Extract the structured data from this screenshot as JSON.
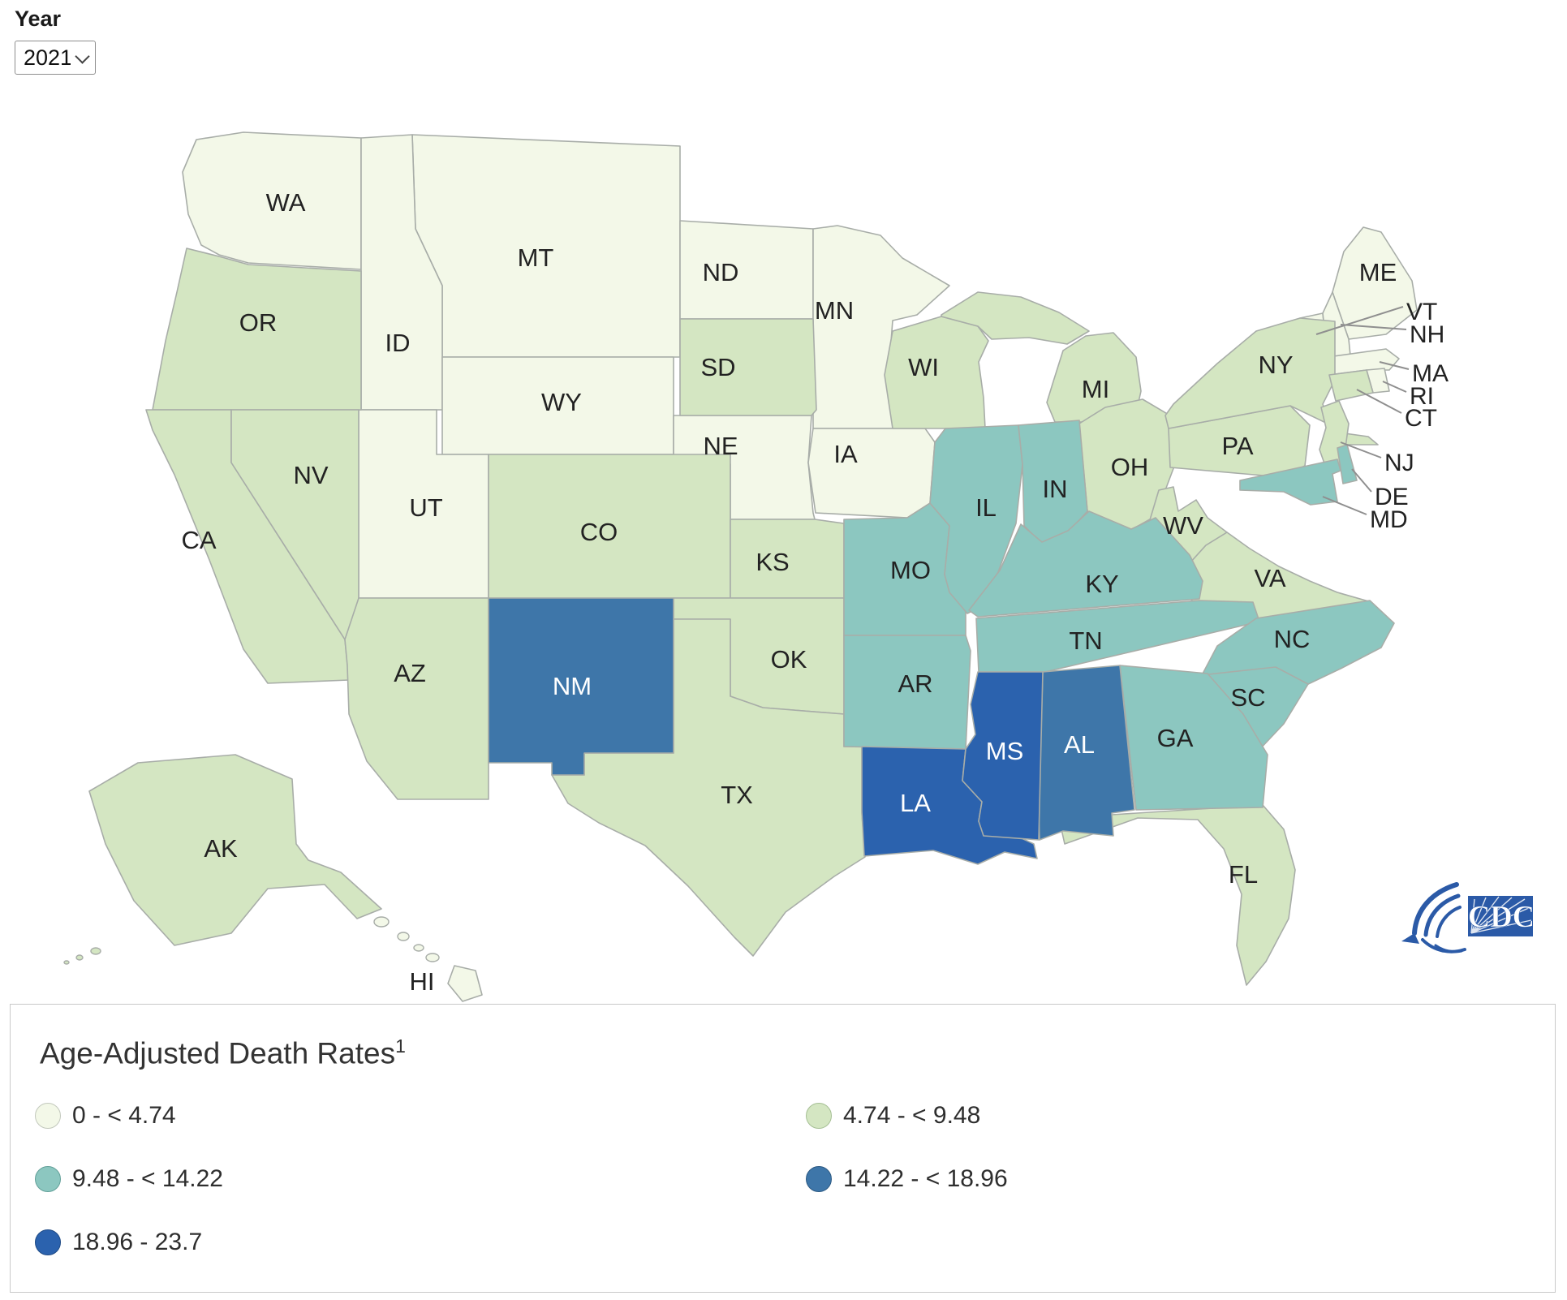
{
  "controls": {
    "year_label": "Year",
    "year_value": "2021"
  },
  "map": {
    "stroke_color": "#a8ada8",
    "categories": [
      {
        "label": "0 - < 4.74",
        "color": "#f3f8e8",
        "border": "#c2c8bc"
      },
      {
        "label": "4.74 - < 9.48",
        "color": "#d4e6c2",
        "border": "#a5bf94"
      },
      {
        "label": "9.48 - < 14.22",
        "color": "#8cc7c0",
        "border": "#62a099"
      },
      {
        "label": "14.22 - < 18.96",
        "color": "#3e76a9",
        "border": "#2d5a83"
      },
      {
        "label": "18.96 - 23.7",
        "color": "#2b62ae",
        "border": "#1e4a85"
      }
    ],
    "states": [
      {
        "abbr": "WA",
        "category": 0
      },
      {
        "abbr": "MT",
        "category": 0
      },
      {
        "abbr": "ID",
        "category": 0
      },
      {
        "abbr": "WY",
        "category": 0
      },
      {
        "abbr": "ND",
        "category": 0
      },
      {
        "abbr": "MN",
        "category": 0
      },
      {
        "abbr": "NE",
        "category": 0
      },
      {
        "abbr": "IA",
        "category": 0
      },
      {
        "abbr": "UT",
        "category": 0
      },
      {
        "abbr": "ME",
        "category": 0
      },
      {
        "abbr": "VT",
        "category": 0
      },
      {
        "abbr": "NH",
        "category": 0
      },
      {
        "abbr": "MA",
        "category": 0
      },
      {
        "abbr": "RI",
        "category": 0
      },
      {
        "abbr": "HI",
        "category": 0
      },
      {
        "abbr": "OR",
        "category": 1
      },
      {
        "abbr": "CA",
        "category": 1
      },
      {
        "abbr": "NV",
        "category": 1
      },
      {
        "abbr": "AZ",
        "category": 1
      },
      {
        "abbr": "CO",
        "category": 1
      },
      {
        "abbr": "SD",
        "category": 1
      },
      {
        "abbr": "KS",
        "category": 1
      },
      {
        "abbr": "OK",
        "category": 1
      },
      {
        "abbr": "TX",
        "category": 1
      },
      {
        "abbr": "WI",
        "category": 1
      },
      {
        "abbr": "MI",
        "category": 1
      },
      {
        "abbr": "OH",
        "category": 1
      },
      {
        "abbr": "PA",
        "category": 1
      },
      {
        "abbr": "NY",
        "category": 1
      },
      {
        "abbr": "NJ",
        "category": 1
      },
      {
        "abbr": "CT",
        "category": 1
      },
      {
        "abbr": "WV",
        "category": 1
      },
      {
        "abbr": "VA",
        "category": 1
      },
      {
        "abbr": "FL",
        "category": 1
      },
      {
        "abbr": "AK",
        "category": 1
      },
      {
        "abbr": "MO",
        "category": 2
      },
      {
        "abbr": "IL",
        "category": 2
      },
      {
        "abbr": "IN",
        "category": 2
      },
      {
        "abbr": "KY",
        "category": 2
      },
      {
        "abbr": "TN",
        "category": 2
      },
      {
        "abbr": "AR",
        "category": 2
      },
      {
        "abbr": "NC",
        "category": 2
      },
      {
        "abbr": "SC",
        "category": 2
      },
      {
        "abbr": "GA",
        "category": 2
      },
      {
        "abbr": "MD",
        "category": 2
      },
      {
        "abbr": "DE",
        "category": 2
      },
      {
        "abbr": "NM",
        "category": 3
      },
      {
        "abbr": "AL",
        "category": 3
      },
      {
        "abbr": "LA",
        "category": 4
      },
      {
        "abbr": "MS",
        "category": 4
      }
    ]
  },
  "legend": {
    "title": "Age-Adjusted Death Rates",
    "title_superscript": "1",
    "items": [
      {
        "label": "0 - < 4.74",
        "category": 0
      },
      {
        "label": "4.74 - < 9.48",
        "category": 1
      },
      {
        "label": "9.48 - < 14.22",
        "category": 2
      },
      {
        "label": "14.22 - < 18.96",
        "category": 3
      },
      {
        "label": "18.96 - 23.7",
        "category": 4
      }
    ]
  },
  "logo": {
    "cdc_text": "CDC"
  },
  "chart_data": {
    "type": "heatmap",
    "subtype": "us-state-choropleth",
    "title": "Age-Adjusted Death Rates",
    "title_superscript": "1",
    "year": "2021",
    "legend_position": "bottom",
    "value_range": [
      0,
      23.7
    ],
    "bins": [
      {
        "range": "0 - < 4.74",
        "color": "#f3f8e8",
        "states": [
          "WA",
          "MT",
          "ID",
          "WY",
          "ND",
          "MN",
          "NE",
          "IA",
          "UT",
          "ME",
          "VT",
          "NH",
          "MA",
          "RI",
          "HI"
        ]
      },
      {
        "range": "4.74 - < 9.48",
        "color": "#d4e6c2",
        "states": [
          "OR",
          "CA",
          "NV",
          "AZ",
          "CO",
          "SD",
          "KS",
          "OK",
          "TX",
          "WI",
          "MI",
          "OH",
          "PA",
          "NY",
          "NJ",
          "CT",
          "WV",
          "VA",
          "FL",
          "AK"
        ]
      },
      {
        "range": "9.48 - < 14.22",
        "color": "#8cc7c0",
        "states": [
          "MO",
          "IL",
          "IN",
          "KY",
          "TN",
          "AR",
          "NC",
          "SC",
          "GA",
          "MD",
          "DE"
        ]
      },
      {
        "range": "14.22 - < 18.96",
        "color": "#3e76a9",
        "states": [
          "NM",
          "AL"
        ]
      },
      {
        "range": "18.96 - 23.7",
        "color": "#2b62ae",
        "states": [
          "LA",
          "MS"
        ]
      }
    ]
  }
}
